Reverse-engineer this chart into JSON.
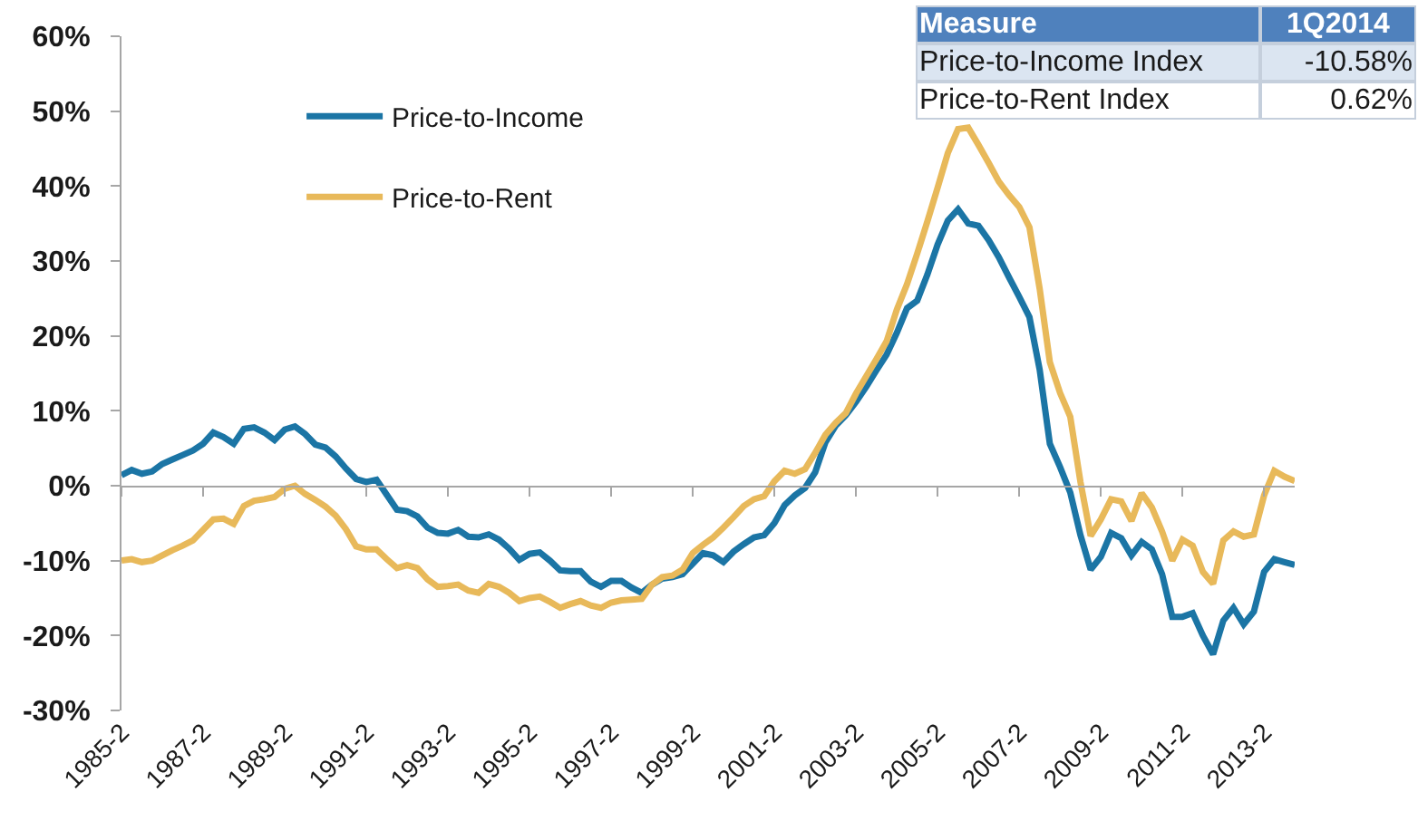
{
  "chart_data": {
    "type": "line",
    "categories": [
      "1985-2",
      null,
      null,
      null,
      null,
      null,
      null,
      null,
      "1987-2",
      null,
      null,
      null,
      null,
      null,
      null,
      null,
      "1989-2",
      null,
      null,
      null,
      null,
      null,
      null,
      null,
      "1991-2",
      null,
      null,
      null,
      null,
      null,
      null,
      null,
      "1993-2",
      null,
      null,
      null,
      null,
      null,
      null,
      null,
      "1995-2",
      null,
      null,
      null,
      null,
      null,
      null,
      null,
      "1997-2",
      null,
      null,
      null,
      null,
      null,
      null,
      null,
      "1999-2",
      null,
      null,
      null,
      null,
      null,
      null,
      null,
      "2001-2",
      null,
      null,
      null,
      null,
      null,
      null,
      null,
      "2003-2",
      null,
      null,
      null,
      null,
      null,
      null,
      null,
      "2005-2",
      null,
      null,
      null,
      null,
      null,
      null,
      null,
      "2007-2",
      null,
      null,
      null,
      null,
      null,
      null,
      null,
      "2009-2",
      null,
      null,
      null,
      null,
      null,
      null,
      null,
      "2011-2",
      null,
      null,
      null,
      null,
      null,
      null,
      null,
      "2013-2",
      null,
      null,
      null
    ],
    "series": [
      {
        "name": "Price-to-Income",
        "color": "#1b75a5",
        "values": [
          1.4,
          2.1,
          1.6,
          1.9,
          2.9,
          3.5,
          4.1,
          4.7,
          5.6,
          7.1,
          6.5,
          5.6,
          7.6,
          7.8,
          7.1,
          6.1,
          7.5,
          7.9,
          6.9,
          5.5,
          5.1,
          3.9,
          2.3,
          0.9,
          0.5,
          0.8,
          -1.2,
          -3.2,
          -3.4,
          -4.1,
          -5.6,
          -6.3,
          -6.4,
          -5.9,
          -6.8,
          -6.9,
          -6.5,
          -7.2,
          -8.4,
          -9.9,
          -9.1,
          -8.9,
          -10.0,
          -11.3,
          -11.4,
          -11.4,
          -12.8,
          -13.5,
          -12.7,
          -12.7,
          -13.6,
          -14.3,
          -13.2,
          -12.4,
          -12.2,
          -11.8,
          -10.4,
          -9.0,
          -9.3,
          -10.2,
          -8.8,
          -7.8,
          -6.9,
          -6.6,
          -5.0,
          -2.6,
          -1.3,
          -0.3,
          1.8,
          5.8,
          8.0,
          9.4,
          11.2,
          13.2,
          15.4,
          17.5,
          20.4,
          23.7,
          24.7,
          28.2,
          32.2,
          35.4,
          36.9,
          35.0,
          34.7,
          32.8,
          30.5,
          27.8,
          25.2,
          22.5,
          15.5,
          5.6,
          2.5,
          -0.9,
          -6.6,
          -11.2,
          -9.5,
          -6.3,
          -7.0,
          -9.3,
          -7.5,
          -8.5,
          -11.8,
          -17.5,
          -17.5,
          -17.0,
          -20.0,
          -22.5,
          -18.0,
          -16.3,
          -18.5,
          -16.8,
          -11.5,
          -9.8,
          -10.2,
          -10.58
        ]
      },
      {
        "name": "Price-to-Rent",
        "color": "#e8b95a",
        "values": [
          -10.0,
          -9.8,
          -10.2,
          -10.0,
          -9.3,
          -8.6,
          -8.0,
          -7.3,
          -5.9,
          -4.5,
          -4.4,
          -5.1,
          -2.7,
          -2.0,
          -1.8,
          -1.5,
          -0.4,
          0.0,
          -1.1,
          -1.9,
          -2.8,
          -4.0,
          -5.8,
          -8.1,
          -8.5,
          -8.5,
          -9.8,
          -11.0,
          -10.6,
          -11.0,
          -12.5,
          -13.5,
          -13.4,
          -13.2,
          -14.0,
          -14.3,
          -13.1,
          -13.5,
          -14.3,
          -15.4,
          -15.0,
          -14.8,
          -15.5,
          -16.3,
          -15.8,
          -15.4,
          -16.0,
          -16.3,
          -15.6,
          -15.3,
          -15.2,
          -15.1,
          -13.2,
          -12.2,
          -12.0,
          -11.2,
          -9.0,
          -7.9,
          -6.9,
          -5.6,
          -4.2,
          -2.7,
          -1.8,
          -1.4,
          0.6,
          2.0,
          1.6,
          2.2,
          4.4,
          6.8,
          8.4,
          9.7,
          12.3,
          14.6,
          16.9,
          19.3,
          23.5,
          26.9,
          31.0,
          35.3,
          39.8,
          44.4,
          47.6,
          47.8,
          45.5,
          43.1,
          40.6,
          38.8,
          37.2,
          34.5,
          26.3,
          16.5,
          12.4,
          9.2,
          0.5,
          -6.7,
          -4.5,
          -1.8,
          -2.1,
          -4.7,
          -1.0,
          -2.9,
          -6.1,
          -10.0,
          -7.2,
          -8.0,
          -11.5,
          -13.1,
          -7.3,
          -6.1,
          -6.8,
          -6.5,
          -1.3,
          2.0,
          1.2,
          0.62
        ]
      }
    ],
    "ylim": [
      -30,
      60
    ],
    "yticks": [
      {
        "value": -30,
        "label": "-30%"
      },
      {
        "value": -20,
        "label": "-20%"
      },
      {
        "value": -10,
        "label": "-10%"
      },
      {
        "value": 0,
        "label": "0%"
      },
      {
        "value": 10,
        "label": "10%"
      },
      {
        "value": 20,
        "label": "20%"
      },
      {
        "value": 30,
        "label": "30%"
      },
      {
        "value": 40,
        "label": "40%"
      },
      {
        "value": 50,
        "label": "50%"
      },
      {
        "value": 60,
        "label": "60%"
      }
    ],
    "legend": "top left",
    "annotations": [
      "Measure",
      "1Q2014",
      "Price-to-Income Index",
      "-10.58%",
      "Price-to-Rent Index",
      "0.62%"
    ]
  }
}
